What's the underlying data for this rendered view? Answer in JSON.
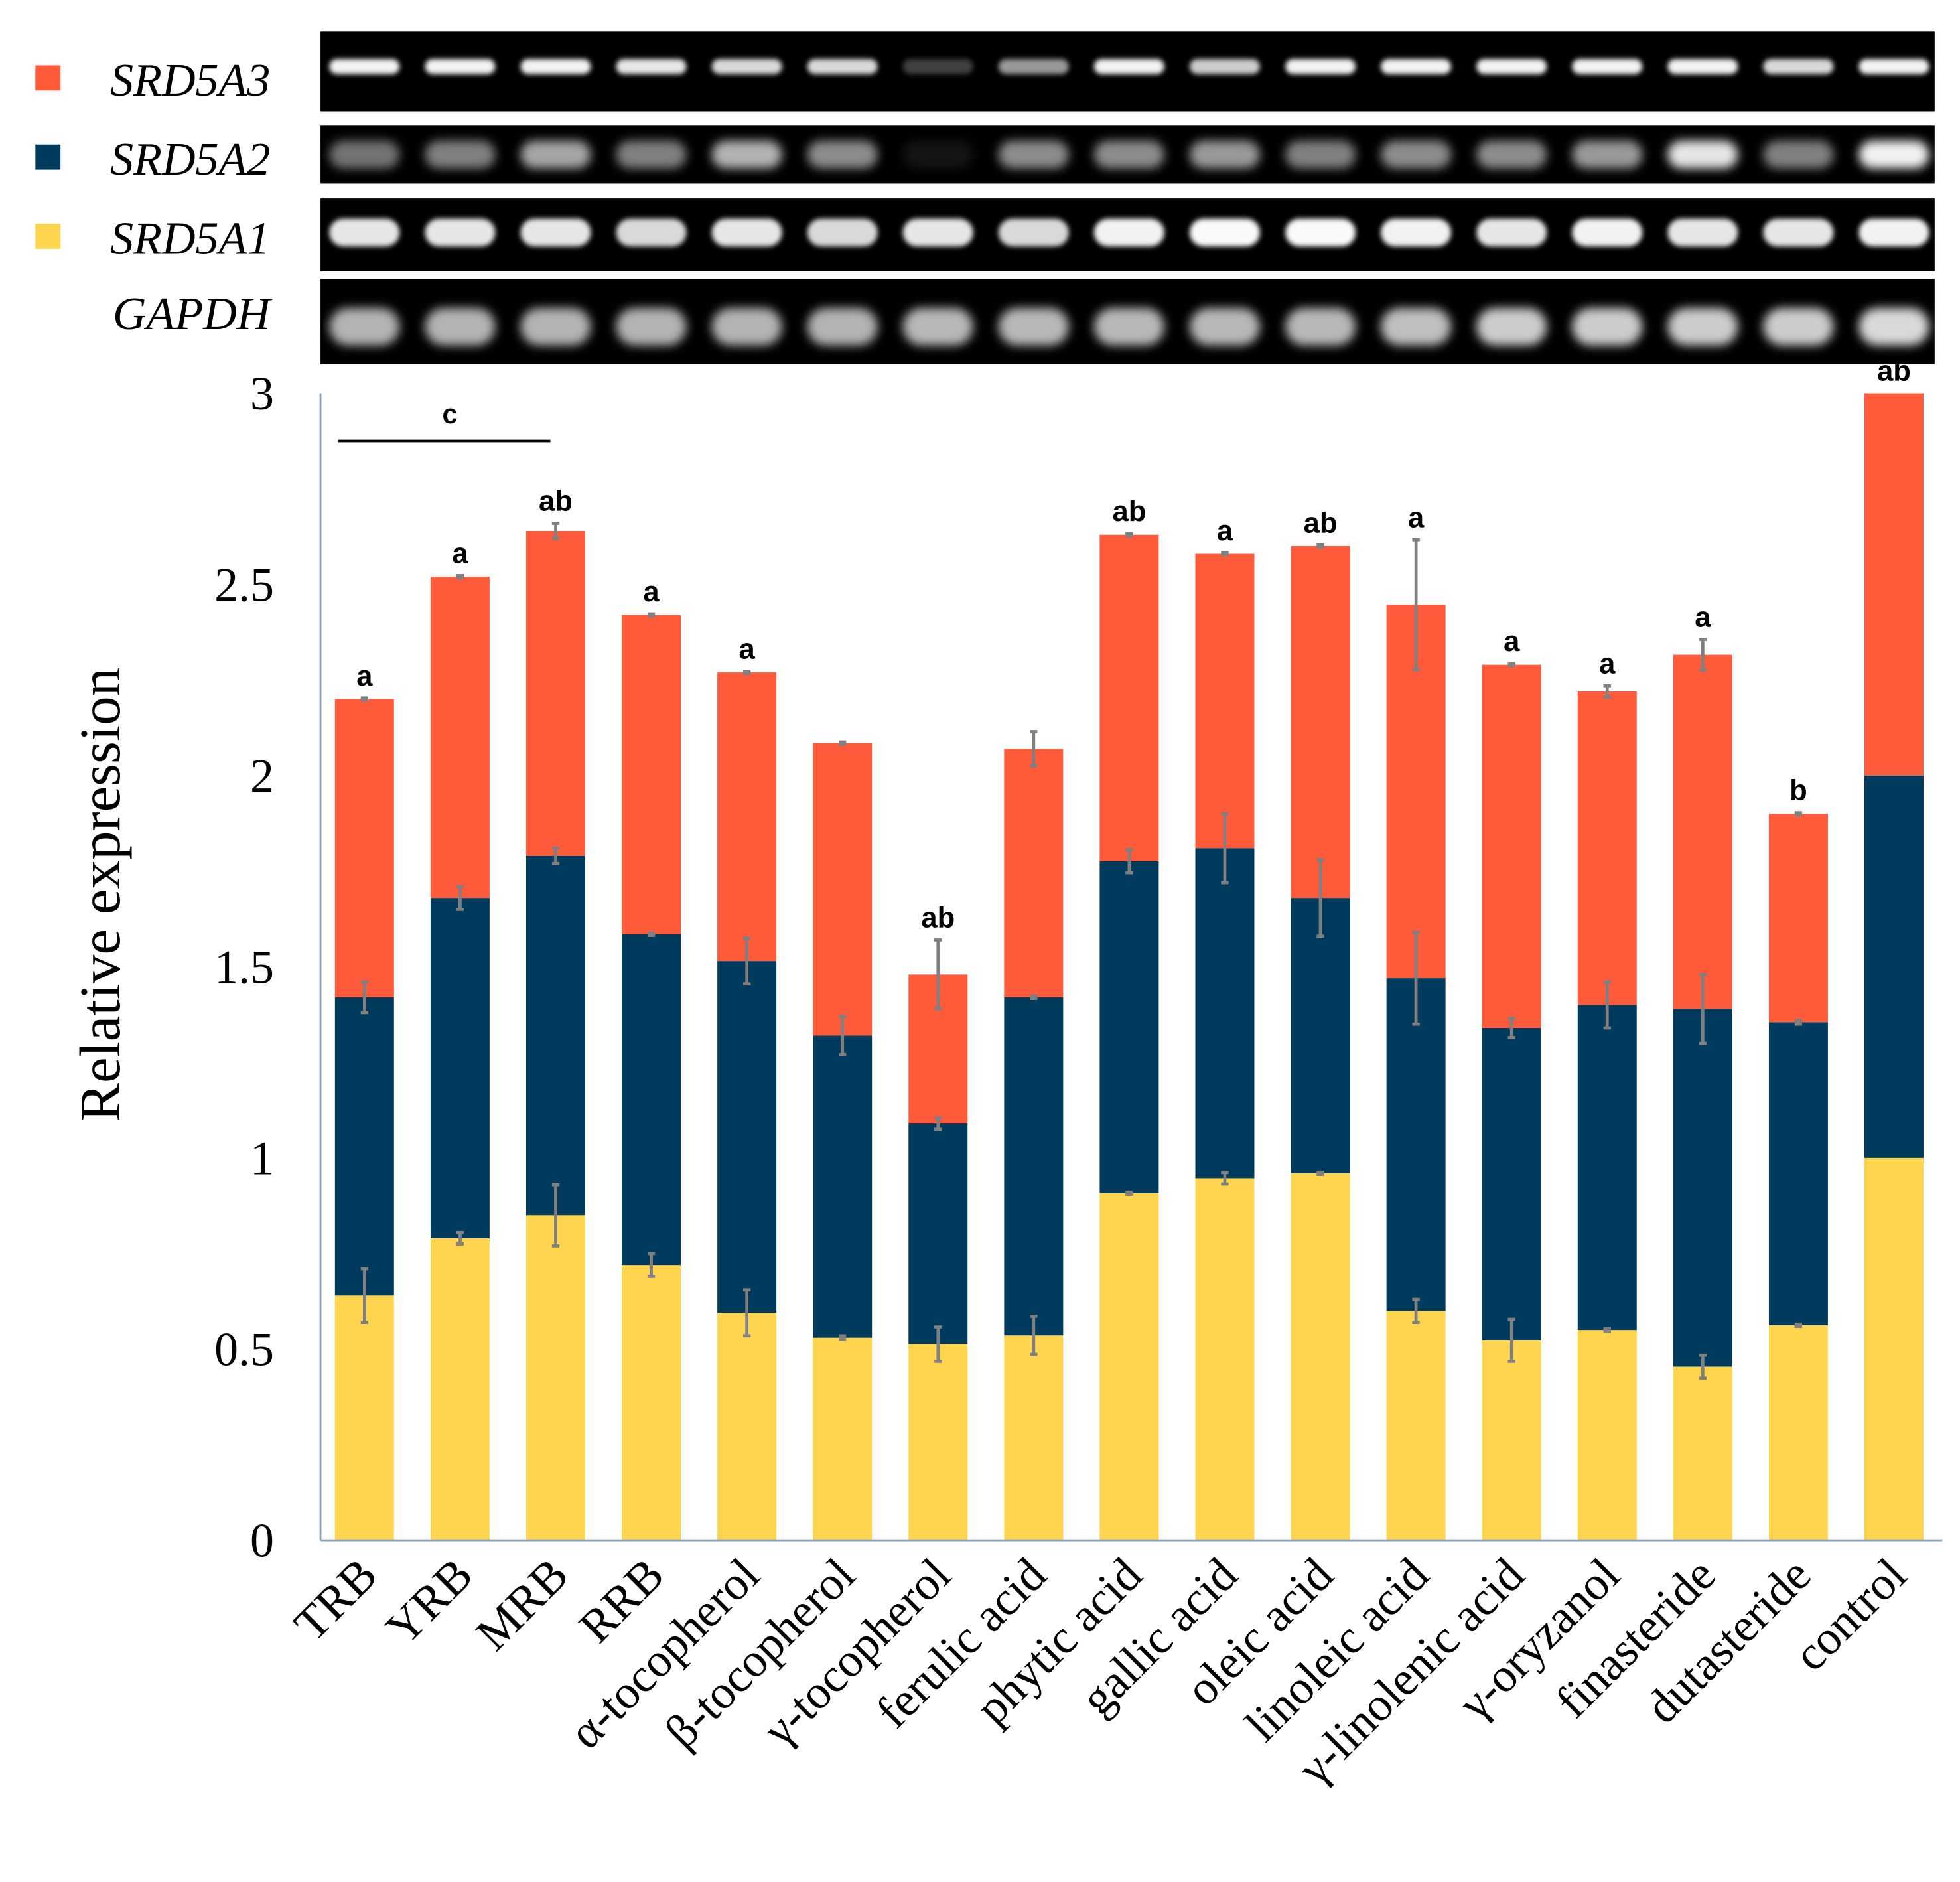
{
  "legend": [
    {
      "name": "SRD5A3",
      "color": "#FF5A3A"
    },
    {
      "name": "SRD5A2",
      "color": "#003A5D"
    },
    {
      "name": "SRD5A1",
      "color": "#FFD54F"
    },
    {
      "name": "GAPDH",
      "color": ""
    }
  ],
  "chart_data": {
    "type": "bar",
    "stacked": true,
    "ylabel": "Relative expression",
    "xlabel": "",
    "ylim": [
      0,
      3
    ],
    "yticks": [
      "0",
      "0.5",
      "1",
      "1.5",
      "2",
      "2.5",
      "3"
    ],
    "categories": [
      "TRB",
      "YRB",
      "MRB",
      "RRB",
      "α-tocopherol",
      "β-tocopherol",
      "γ-tocopherol",
      "ferulic acid",
      "phytic acid",
      "gallic acid",
      "oleic acid",
      "linoleic acid",
      "γ-linolenic acid",
      "γ-oryzanol",
      "finasteride",
      "dutasteride",
      "control"
    ],
    "series": [
      {
        "name": "SRD5A1",
        "color": "#FFD54F",
        "values": [
          0.64,
          0.79,
          0.85,
          0.72,
          0.595,
          0.53,
          0.513,
          0.536,
          0.908,
          0.947,
          0.96,
          0.6,
          0.523,
          0.55,
          0.454,
          0.5625,
          1.0
        ],
        "errors": [
          0.07,
          0.015,
          0.08,
          0.03,
          0.06,
          0.005,
          0.045,
          0.05,
          0.003,
          0.015,
          0.003,
          0.03,
          0.055,
          0.003,
          0.03,
          0.003,
          0
        ]
      },
      {
        "name": "SRD5A2",
        "color": "#003A5D",
        "values": [
          0.78,
          0.89,
          0.94,
          0.865,
          0.92,
          0.79,
          0.577,
          0.884,
          0.868,
          0.863,
          0.72,
          0.87,
          0.817,
          0.85,
          0.936,
          0.7925,
          1.0
        ],
        "errors": [
          0.04,
          0.03,
          0.02,
          0.003,
          0.06,
          0.05,
          0.015,
          0.003,
          0.03,
          0.09,
          0.1,
          0.12,
          0.025,
          0.06,
          0.09,
          0.005,
          0
        ]
      },
      {
        "name": "SRD5A3",
        "color": "#FF5A3A",
        "values": [
          0.78,
          0.84,
          0.85,
          0.835,
          0.755,
          0.765,
          0.39,
          0.65,
          0.854,
          0.77,
          0.92,
          0.977,
          0.95,
          0.82,
          0.926,
          0.545,
          1.0
        ],
        "errors": [
          0.003,
          0.003,
          0.02,
          0.003,
          0.003,
          0.003,
          0.09,
          0.045,
          0.003,
          0.003,
          0.003,
          0.17,
          0.003,
          0.015,
          0.04,
          0.003,
          0
        ]
      }
    ],
    "significance_letters": [
      "a",
      "a",
      "ab",
      "a",
      "a",
      "",
      "ab",
      "",
      "ab",
      "a",
      "ab",
      "a",
      "a",
      "a",
      "a",
      "b",
      "ab"
    ],
    "group_annotation": {
      "label": "c",
      "from": "TRB",
      "to": "MRB"
    },
    "grid": false,
    "legend_placement": "top-left"
  }
}
